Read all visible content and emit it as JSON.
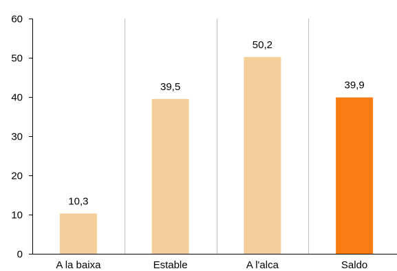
{
  "chart_data": {
    "type": "bar",
    "categories": [
      "A la baixa",
      "Estable",
      "A l'alca",
      "Saldo"
    ],
    "values": [
      10.3,
      39.5,
      50.2,
      39.9
    ],
    "value_labels": [
      "10,3",
      "39,5",
      "50,2",
      "39,9"
    ],
    "ylim": [
      0,
      60
    ],
    "yticks": [
      0,
      10,
      20,
      30,
      40,
      50,
      60
    ],
    "title": "",
    "xlabel": "",
    "ylabel": "",
    "grid": "vertical separators between categories",
    "legend": "none",
    "colors": {
      "bar": "#f5cf9b",
      "highlight": "#f97d13",
      "axis": "#000000",
      "separator": "#bfbfbf"
    },
    "highlight_index": 3
  }
}
